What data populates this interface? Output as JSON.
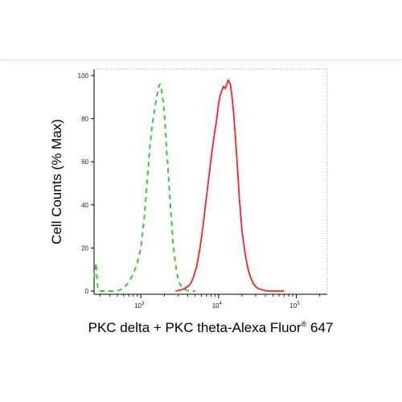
{
  "chart_data": {
    "type": "line",
    "xlabel": {
      "main": "PKC delta + PKC theta-Alexa Fluor",
      "sup": "®",
      "tail": " 647"
    },
    "ylabel": "Cell Counts (% Max)",
    "x_scale": "log",
    "xlim": [
      250,
      250000
    ],
    "ylim": [
      0,
      100
    ],
    "y_ticks": [
      "0",
      "20",
      "40",
      "60",
      "80",
      "100"
    ],
    "y_tick_values": [
      0,
      20,
      40,
      60,
      80,
      100
    ],
    "x_ticks": [
      {
        "value": 1000,
        "base": "10",
        "exp": "3"
      },
      {
        "value": 10000,
        "base": "10",
        "exp": "4"
      },
      {
        "value": 100000,
        "base": "10",
        "exp": "5"
      }
    ],
    "grid": false,
    "series": [
      {
        "color": "#33cc33",
        "style": "dashed",
        "x": [
          250,
          265,
          278,
          290,
          310,
          340,
          380,
          430,
          480,
          540,
          600,
          660,
          720,
          800,
          900,
          1000,
          1100,
          1200,
          1300,
          1400,
          1500,
          1600,
          1700,
          1760,
          1820,
          1880,
          1950,
          2050,
          2150,
          2300,
          2450,
          2600,
          2800,
          3000,
          3200,
          3500,
          3800,
          4200,
          5000
        ],
        "y": [
          6,
          13,
          2,
          0,
          0,
          0,
          0,
          0,
          0,
          0.5,
          1.5,
          3,
          5,
          8,
          13,
          20,
          33,
          50,
          66,
          77,
          84,
          90,
          95,
          96,
          95,
          91,
          87,
          78,
          65,
          50,
          35,
          22,
          12,
          6,
          3,
          1,
          0.5,
          0,
          0
        ]
      },
      {
        "color": "#ff2020",
        "style": "solid",
        "x": [
          2800,
          3300,
          3800,
          4300,
          4700,
          5200,
          5700,
          6300,
          7000,
          7800,
          8600,
          9400,
          10000,
          10500,
          11000,
          11500,
          12200,
          12800,
          13300,
          13700,
          14200,
          14800,
          15600,
          16500,
          17500,
          18500,
          20000,
          22000,
          24000,
          26000,
          28000,
          30000,
          33000,
          37000,
          42000,
          50000,
          70000
        ],
        "y": [
          0,
          0.5,
          1.5,
          3,
          6,
          11,
          19,
          30,
          44,
          58,
          70,
          79,
          87,
          91,
          93,
          95,
          94,
          96,
          98,
          97,
          96,
          91,
          83,
          71,
          57,
          43,
          28,
          17,
          10,
          6,
          3.5,
          2,
          1,
          0.5,
          0,
          0,
          0
        ]
      }
    ]
  }
}
